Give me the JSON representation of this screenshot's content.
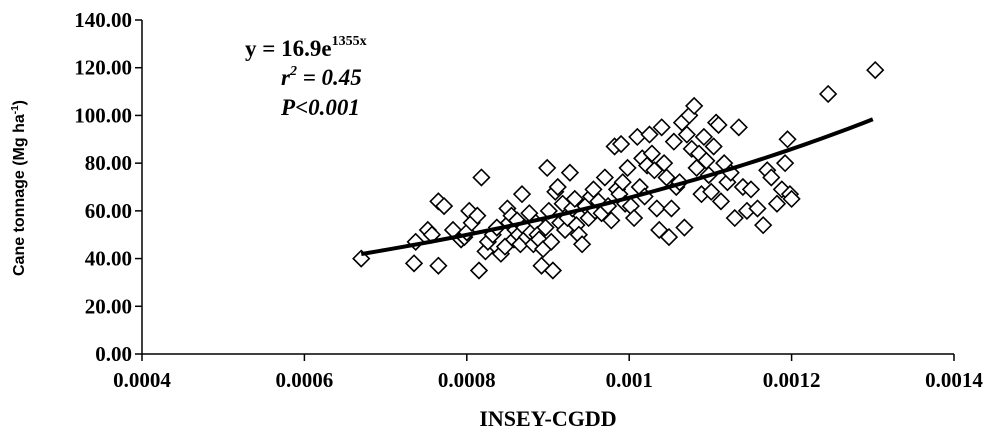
{
  "chart_data": {
    "type": "scatter",
    "title": "",
    "xlabel": "INSEY-CGDD",
    "ylabel": {
      "main": "Cane tonnage (Mg ha",
      "sup": "-1",
      "close": ")"
    },
    "xlim": [
      0.0004,
      0.0014
    ],
    "ylim": [
      0,
      140
    ],
    "x_ticks": [
      "0.0004",
      "0.0006",
      "0.0008",
      "0.001",
      "0.0012",
      "0.0014"
    ],
    "x_tick_values": [
      0.0004,
      0.0006,
      0.0008,
      0.001,
      0.0012,
      0.0014
    ],
    "y_ticks": [
      "0.00",
      "20.00",
      "40.00",
      "60.00",
      "80.00",
      "100.00",
      "120.00",
      "140.00"
    ],
    "y_tick_values": [
      0,
      20,
      40,
      60,
      80,
      100,
      120,
      140
    ],
    "grid": false,
    "legend": "none",
    "marker": "diamond-open",
    "annotation": {
      "equation_prefix": "y = 16.9e",
      "equation_exponent": "1355x",
      "r2_symbol": "r",
      "r2_sup": "2",
      "r2_value": " = 0.45",
      "p_symbol": "P",
      "p_value": "<0.001"
    },
    "trendline": {
      "type": "exponential",
      "a": 16.9,
      "b": 1355,
      "x_range": [
        0.00067,
        0.0013
      ]
    },
    "points": [
      [
        0.00067,
        40
      ],
      [
        0.000735,
        38
      ],
      [
        0.000737,
        47
      ],
      [
        0.000752,
        52
      ],
      [
        0.000757,
        50
      ],
      [
        0.000765,
        37
      ],
      [
        0.000765,
        64
      ],
      [
        0.000772,
        62
      ],
      [
        0.000783,
        52
      ],
      [
        0.000793,
        48
      ],
      [
        0.000797,
        49
      ],
      [
        0.0008,
        51
      ],
      [
        0.000803,
        60
      ],
      [
        0.000806,
        55
      ],
      [
        0.000813,
        58
      ],
      [
        0.000815,
        35
      ],
      [
        0.000818,
        74
      ],
      [
        0.000823,
        43
      ],
      [
        0.000826,
        47
      ],
      [
        0.000832,
        50
      ],
      [
        0.000837,
        53
      ],
      [
        0.000842,
        42
      ],
      [
        0.000847,
        45
      ],
      [
        0.00085,
        61
      ],
      [
        0.000852,
        55
      ],
      [
        0.000855,
        58
      ],
      [
        0.000858,
        48
      ],
      [
        0.00086,
        52
      ],
      [
        0.000862,
        56
      ],
      [
        0.000864,
        50
      ],
      [
        0.000866,
        46
      ],
      [
        0.000868,
        67
      ],
      [
        0.000871,
        53
      ],
      [
        0.000874,
        49
      ],
      [
        0.000877,
        59
      ],
      [
        0.000879,
        51
      ],
      [
        0.000882,
        46
      ],
      [
        0.000885,
        55
      ],
      [
        0.000887,
        50
      ],
      [
        0.000889,
        48
      ],
      [
        0.000892,
        37
      ],
      [
        0.000894,
        44
      ],
      [
        0.000897,
        53
      ],
      [
        0.000899,
        78
      ],
      [
        0.000901,
        60
      ],
      [
        0.000904,
        47
      ],
      [
        0.000906,
        35
      ],
      [
        0.000909,
        68
      ],
      [
        0.000912,
        70
      ],
      [
        0.000915,
        55
      ],
      [
        0.000918,
        63
      ],
      [
        0.000921,
        52
      ],
      [
        0.000924,
        57
      ],
      [
        0.000927,
        76
      ],
      [
        0.00093,
        61
      ],
      [
        0.000933,
        65
      ],
      [
        0.000935,
        54
      ],
      [
        0.000938,
        50
      ],
      [
        0.000942,
        46
      ],
      [
        0.000946,
        62
      ],
      [
        0.00095,
        57
      ],
      [
        0.000953,
        66
      ],
      [
        0.000956,
        69
      ],
      [
        0.000958,
        60
      ],
      [
        0.000962,
        64
      ],
      [
        0.000966,
        59
      ],
      [
        0.00097,
        74
      ],
      [
        0.000974,
        62
      ],
      [
        0.000978,
        56
      ],
      [
        0.000982,
        87
      ],
      [
        0.000985,
        69
      ],
      [
        0.000988,
        67
      ],
      [
        0.00099,
        88
      ],
      [
        0.000992,
        72
      ],
      [
        0.000995,
        63
      ],
      [
        0.000998,
        78
      ],
      [
        0.001002,
        62
      ],
      [
        0.001006,
        57
      ],
      [
        0.00101,
        91
      ],
      [
        0.001013,
        70
      ],
      [
        0.001016,
        82
      ],
      [
        0.001019,
        66
      ],
      [
        0.001022,
        79
      ],
      [
        0.001025,
        92
      ],
      [
        0.001028,
        84
      ],
      [
        0.001031,
        77
      ],
      [
        0.001034,
        61
      ],
      [
        0.001037,
        52
      ],
      [
        0.00104,
        95
      ],
      [
        0.001043,
        80
      ],
      [
        0.001046,
        74
      ],
      [
        0.001049,
        49
      ],
      [
        0.001052,
        61
      ],
      [
        0.001055,
        89
      ],
      [
        0.001058,
        70
      ],
      [
        0.001062,
        72
      ],
      [
        0.001065,
        97
      ],
      [
        0.001068,
        53
      ],
      [
        0.001071,
        92
      ],
      [
        0.001074,
        100
      ],
      [
        0.001077,
        86
      ],
      [
        0.00108,
        104
      ],
      [
        0.001083,
        78
      ],
      [
        0.001086,
        84
      ],
      [
        0.001089,
        67
      ],
      [
        0.001092,
        91
      ],
      [
        0.001095,
        81
      ],
      [
        0.001098,
        75
      ],
      [
        0.001101,
        68
      ],
      [
        0.001104,
        87
      ],
      [
        0.001107,
        97
      ],
      [
        0.00111,
        96
      ],
      [
        0.001113,
        64
      ],
      [
        0.001117,
        80
      ],
      [
        0.001121,
        72
      ],
      [
        0.001125,
        76
      ],
      [
        0.00113,
        57
      ],
      [
        0.001135,
        95
      ],
      [
        0.00114,
        70
      ],
      [
        0.001145,
        60
      ],
      [
        0.00115,
        69
      ],
      [
        0.001158,
        61
      ],
      [
        0.001165,
        54
      ],
      [
        0.00117,
        77
      ],
      [
        0.001175,
        74
      ],
      [
        0.001182,
        63
      ],
      [
        0.001188,
        69
      ],
      [
        0.001192,
        80
      ],
      [
        0.001195,
        90
      ],
      [
        0.001198,
        67
      ],
      [
        0.0012,
        65
      ],
      [
        0.001245,
        109
      ],
      [
        0.001303,
        119
      ]
    ]
  }
}
